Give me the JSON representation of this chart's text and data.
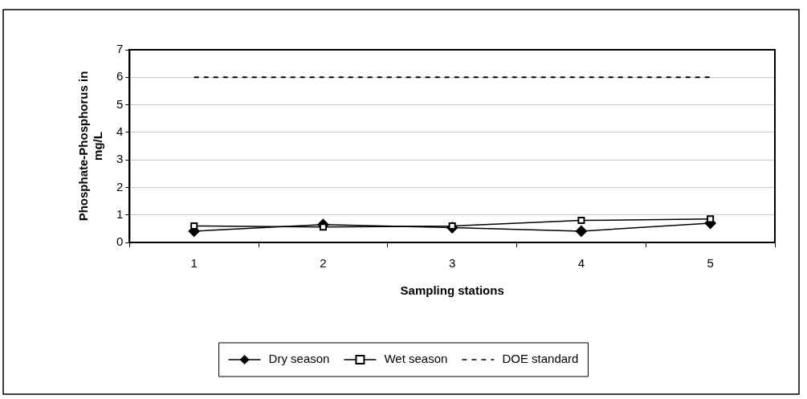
{
  "chart_data": {
    "type": "line",
    "xlabel": "Sampling stations",
    "ylabel": "Phosphate-Phosphorus in mg/L",
    "categories": [
      "1",
      "2",
      "3",
      "4",
      "5"
    ],
    "series": [
      {
        "name": "Dry season",
        "color": "#000000",
        "values": [
          0.41,
          0.65,
          0.54,
          0.41,
          0.7
        ],
        "marker": "diamond",
        "line_style": "solid"
      },
      {
        "name": "Wet season",
        "color": "#000000",
        "values": [
          0.6,
          0.56,
          0.6,
          0.8,
          0.85
        ],
        "marker": "square",
        "line_style": "solid"
      },
      {
        "name": "DOE standard",
        "color": "#000000",
        "values": [
          6,
          6,
          6,
          6,
          6
        ],
        "marker": "none",
        "line_style": "dashed"
      }
    ],
    "ylim": [
      0,
      7
    ],
    "yticks": [
      0,
      1,
      2,
      3,
      4,
      5,
      6,
      7
    ],
    "grid": "y",
    "legend": "bottom"
  }
}
